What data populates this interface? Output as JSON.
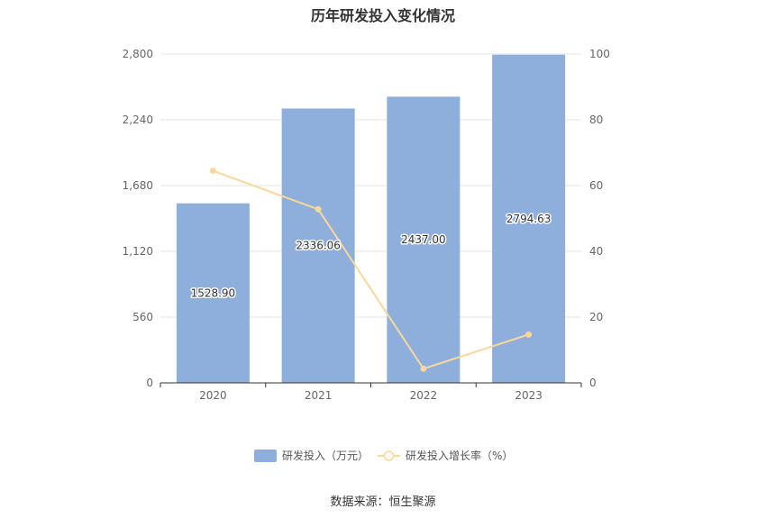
{
  "title": "历年研发投入变化情况",
  "source": "数据来源：恒生聚源",
  "colors": {
    "bar": "#8eaedb",
    "line": "#fad79b",
    "axis": "#333333",
    "grid": "#e6e6e6"
  },
  "chart_data": {
    "type": "bar",
    "title": "历年研发投入变化情况",
    "categories": [
      "2020",
      "2021",
      "2022",
      "2023"
    ],
    "series": [
      {
        "name": "研发投入（万元）",
        "type": "bar",
        "axis": "left",
        "values": [
          1528.9,
          2336.06,
          2437.0,
          2794.63
        ],
        "labels": [
          "1528.90",
          "2336.06",
          "2437.00",
          "2794.63"
        ]
      },
      {
        "name": "研发投入增长率（%）",
        "type": "line",
        "axis": "right",
        "values": [
          64.5,
          52.8,
          4.3,
          14.7
        ]
      }
    ],
    "y_left": {
      "min": 0,
      "max": 2800,
      "ticks": [
        0,
        560,
        1120,
        1680,
        2240,
        2800
      ],
      "tick_labels": [
        "0",
        "560",
        "1,120",
        "1,680",
        "2,240",
        "2,800"
      ]
    },
    "y_right": {
      "min": 0,
      "max": 100,
      "ticks": [
        0,
        20,
        40,
        60,
        80,
        100
      ],
      "tick_labels": [
        "0",
        "20",
        "40",
        "60",
        "80",
        "100"
      ]
    },
    "grid": true,
    "legend": "bottom-center"
  }
}
